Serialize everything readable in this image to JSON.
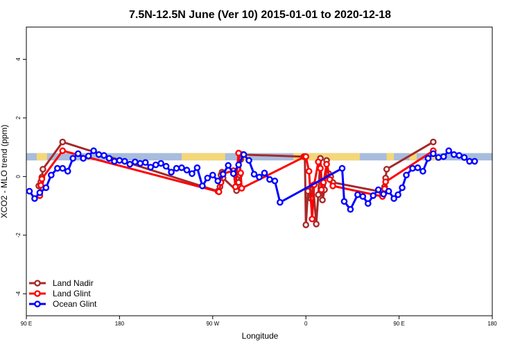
{
  "chart_data": {
    "type": "line",
    "title": "7.5N-12.5N June (Ver 10)   2015-01-01 to 2020-12-18",
    "xlabel": "Longitude",
    "ylabel": "XCO2 - MLO trend (ppm)",
    "xlim": [
      0,
      450
    ],
    "ylim": [
      -4.75,
      5.1
    ],
    "x_ticks": [
      {
        "value": 0,
        "label": "90 E"
      },
      {
        "value": 90,
        "label": "180"
      },
      {
        "value": 180,
        "label": "90 W"
      },
      {
        "value": 270,
        "label": "0"
      },
      {
        "value": 360,
        "label": "90 E"
      },
      {
        "value": 450,
        "label": "180"
      }
    ],
    "y_ticks": [
      {
        "value": -4,
        "label": "-4"
      },
      {
        "value": -2,
        "label": "-2"
      },
      {
        "value": 0,
        "label": "0"
      },
      {
        "value": 2,
        "label": "2"
      },
      {
        "value": 4,
        "label": "4"
      }
    ],
    "legend_position": "bottom-left",
    "band": {
      "ymin": 0.55,
      "ymax": 0.8,
      "color": "#a8bcdc"
    },
    "land_band_color": "#f4d77a",
    "land_segments": [
      [
        10,
        20
      ],
      [
        57,
        63
      ],
      [
        150,
        165
      ],
      [
        165,
        192
      ],
      [
        205,
        215
      ],
      [
        258,
        322
      ],
      [
        348,
        355
      ],
      [
        370,
        377
      ],
      [
        392,
        397
      ]
    ],
    "series": [
      {
        "name": "Land Nadir",
        "color": "#a52a2a",
        "points": [
          [
            12,
            -0.32
          ],
          [
            14,
            -0.18
          ],
          [
            15,
            -0.02
          ],
          [
            16,
            0.25
          ],
          [
            35,
            1.18
          ],
          [
            185,
            -0.5
          ],
          [
            187,
            -0.35
          ],
          [
            188,
            0.05
          ],
          [
            189,
            0.15
          ],
          [
            190,
            -0.05
          ],
          [
            203,
            -0.48
          ],
          [
            205,
            -0.2
          ],
          [
            206,
            0.05
          ],
          [
            207,
            0.58
          ],
          [
            208,
            0.75
          ],
          [
            268,
            0.68
          ],
          [
            269,
            0.68
          ],
          [
            270,
            -1.65
          ],
          [
            272,
            -0.5
          ],
          [
            275,
            -0.75
          ],
          [
            277,
            -0.3
          ],
          [
            280,
            -1.62
          ],
          [
            282,
            -0.62
          ],
          [
            284,
            0.62
          ],
          [
            286,
            -0.8
          ],
          [
            288,
            -0.45
          ],
          [
            290,
            0.55
          ],
          [
            292,
            0.1
          ],
          [
            294,
            0.0
          ],
          [
            296,
            -0.2
          ],
          [
            343,
            -0.52
          ],
          [
            346,
            -0.35
          ],
          [
            347,
            -0.05
          ],
          [
            348,
            0.25
          ],
          [
            393,
            1.18
          ]
        ]
      },
      {
        "name": "Land Glint",
        "color": "#ff0000",
        "points": [
          [
            13,
            -0.65
          ],
          [
            14,
            -0.3
          ],
          [
            15,
            -0.08
          ],
          [
            35,
            0.88
          ],
          [
            186,
            -0.52
          ],
          [
            188,
            -0.2
          ],
          [
            190,
            0.1
          ],
          [
            200,
            0.2
          ],
          [
            202,
            -0.35
          ],
          [
            205,
            0.8
          ],
          [
            207,
            0.12
          ],
          [
            208,
            -0.4
          ],
          [
            269,
            0.68
          ],
          [
            270,
            0.68
          ],
          [
            273,
            0.18
          ],
          [
            276,
            -1.45
          ],
          [
            278,
            -0.28
          ],
          [
            282,
            0.5
          ],
          [
            284,
            0.28
          ],
          [
            285,
            -0.45
          ],
          [
            287,
            -0.2
          ],
          [
            290,
            0.42
          ],
          [
            293,
            -0.1
          ],
          [
            296,
            -0.32
          ],
          [
            344,
            -0.68
          ],
          [
            346,
            -0.42
          ],
          [
            347,
            -0.18
          ],
          [
            393,
            0.88
          ]
        ]
      },
      {
        "name": "Ocean Glint",
        "color": "#0000ff",
        "points": [
          [
            3,
            -0.5
          ],
          [
            8,
            -0.75
          ],
          [
            13,
            -0.55
          ],
          [
            19,
            -0.38
          ],
          [
            24,
            0.05
          ],
          [
            30,
            0.28
          ],
          [
            35,
            0.28
          ],
          [
            40,
            0.18
          ],
          [
            45,
            0.62
          ],
          [
            50,
            0.78
          ],
          [
            55,
            0.62
          ],
          [
            60,
            0.7
          ],
          [
            65,
            0.88
          ],
          [
            70,
            0.75
          ],
          [
            75,
            0.72
          ],
          [
            80,
            0.62
          ],
          [
            85,
            0.52
          ],
          [
            90,
            0.55
          ],
          [
            95,
            0.52
          ],
          [
            100,
            0.42
          ],
          [
            105,
            0.5
          ],
          [
            110,
            0.45
          ],
          [
            115,
            0.48
          ],
          [
            120,
            0.32
          ],
          [
            125,
            0.4
          ],
          [
            130,
            0.45
          ],
          [
            135,
            0.35
          ],
          [
            140,
            0.15
          ],
          [
            145,
            0.28
          ],
          [
            150,
            0.3
          ],
          [
            155,
            0.22
          ],
          [
            160,
            0.1
          ],
          [
            165,
            0.3
          ],
          [
            170,
            -0.32
          ],
          [
            175,
            -0.05
          ],
          [
            180,
            0.05
          ],
          [
            185,
            -0.15
          ],
          [
            190,
            0.08
          ],
          [
            195,
            0.38
          ],
          [
            200,
            0.1
          ],
          [
            205,
            0.4
          ],
          [
            210,
            0.75
          ],
          [
            215,
            0.55
          ],
          [
            220,
            0.08
          ],
          [
            225,
            -0.02
          ],
          [
            230,
            0.12
          ],
          [
            235,
            -0.1
          ],
          [
            240,
            -0.15
          ],
          [
            245,
            -0.88
          ],
          [
            305,
            0.28
          ],
          [
            307,
            -0.85
          ],
          [
            313,
            -1.12
          ],
          [
            320,
            -0.62
          ],
          [
            325,
            -0.68
          ],
          [
            330,
            -0.92
          ],
          [
            335,
            -0.65
          ],
          [
            340,
            -0.45
          ],
          [
            345,
            -0.6
          ],
          [
            350,
            -0.5
          ],
          [
            355,
            -0.75
          ],
          [
            359,
            -0.62
          ],
          [
            363,
            -0.38
          ],
          [
            367,
            0.05
          ],
          [
            373,
            0.28
          ],
          [
            378,
            0.3
          ],
          [
            383,
            0.18
          ],
          [
            388,
            0.62
          ],
          [
            393,
            0.78
          ],
          [
            398,
            0.65
          ],
          [
            403,
            0.68
          ],
          [
            408,
            0.88
          ],
          [
            413,
            0.75
          ],
          [
            418,
            0.72
          ],
          [
            423,
            0.65
          ],
          [
            428,
            0.52
          ],
          [
            433,
            0.52
          ]
        ]
      }
    ]
  }
}
